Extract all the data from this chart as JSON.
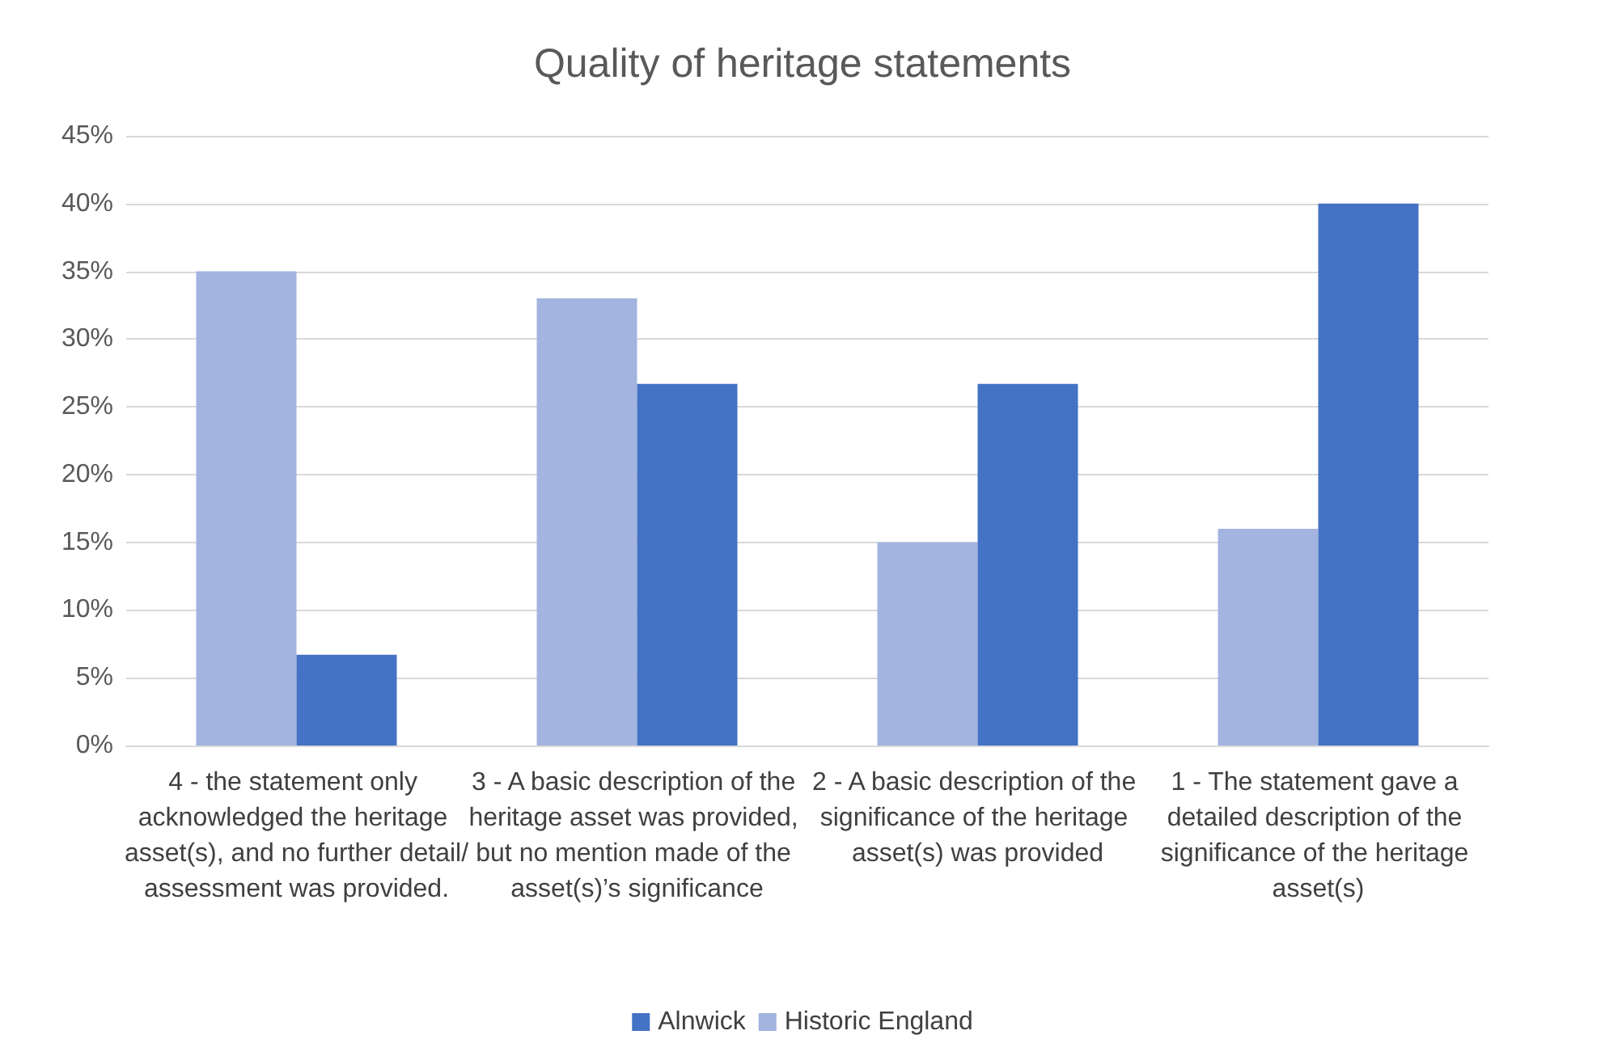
{
  "chart_data": {
    "type": "bar",
    "title": "Quality of heritage statements",
    "categories": [
      "4 - the statement only acknowledged the heritage asset(s), and no further detail/assessment was provided.",
      "3 - A basic description of the heritage asset was provided, but no mention made of the asset(s)’s significance",
      "2 - A basic description of the significance of the heritage asset(s) was provided",
      "1 - The statement gave a detailed description of the significance of the heritage asset(s)"
    ],
    "series": [
      {
        "name": "Historic England",
        "color": "#a2b4df",
        "values": [
          35,
          33,
          15,
          16
        ]
      },
      {
        "name": "Alnwick",
        "color": "#4472c4",
        "values": [
          6.7,
          26.7,
          26.7,
          40
        ]
      }
    ],
    "ylim": [
      0,
      45
    ],
    "yticks": [
      {
        "value": 0,
        "label": "0%"
      },
      {
        "value": 5,
        "label": "5%"
      },
      {
        "value": 10,
        "label": "10%"
      },
      {
        "value": 15,
        "label": "15%"
      },
      {
        "value": 20,
        "label": "20%"
      },
      {
        "value": 25,
        "label": "25%"
      },
      {
        "value": 30,
        "label": "30%"
      },
      {
        "value": 35,
        "label": "35%"
      },
      {
        "value": 40,
        "label": "40%"
      },
      {
        "value": 45,
        "label": "45%"
      }
    ],
    "grid": "y",
    "legend": "bottom"
  }
}
